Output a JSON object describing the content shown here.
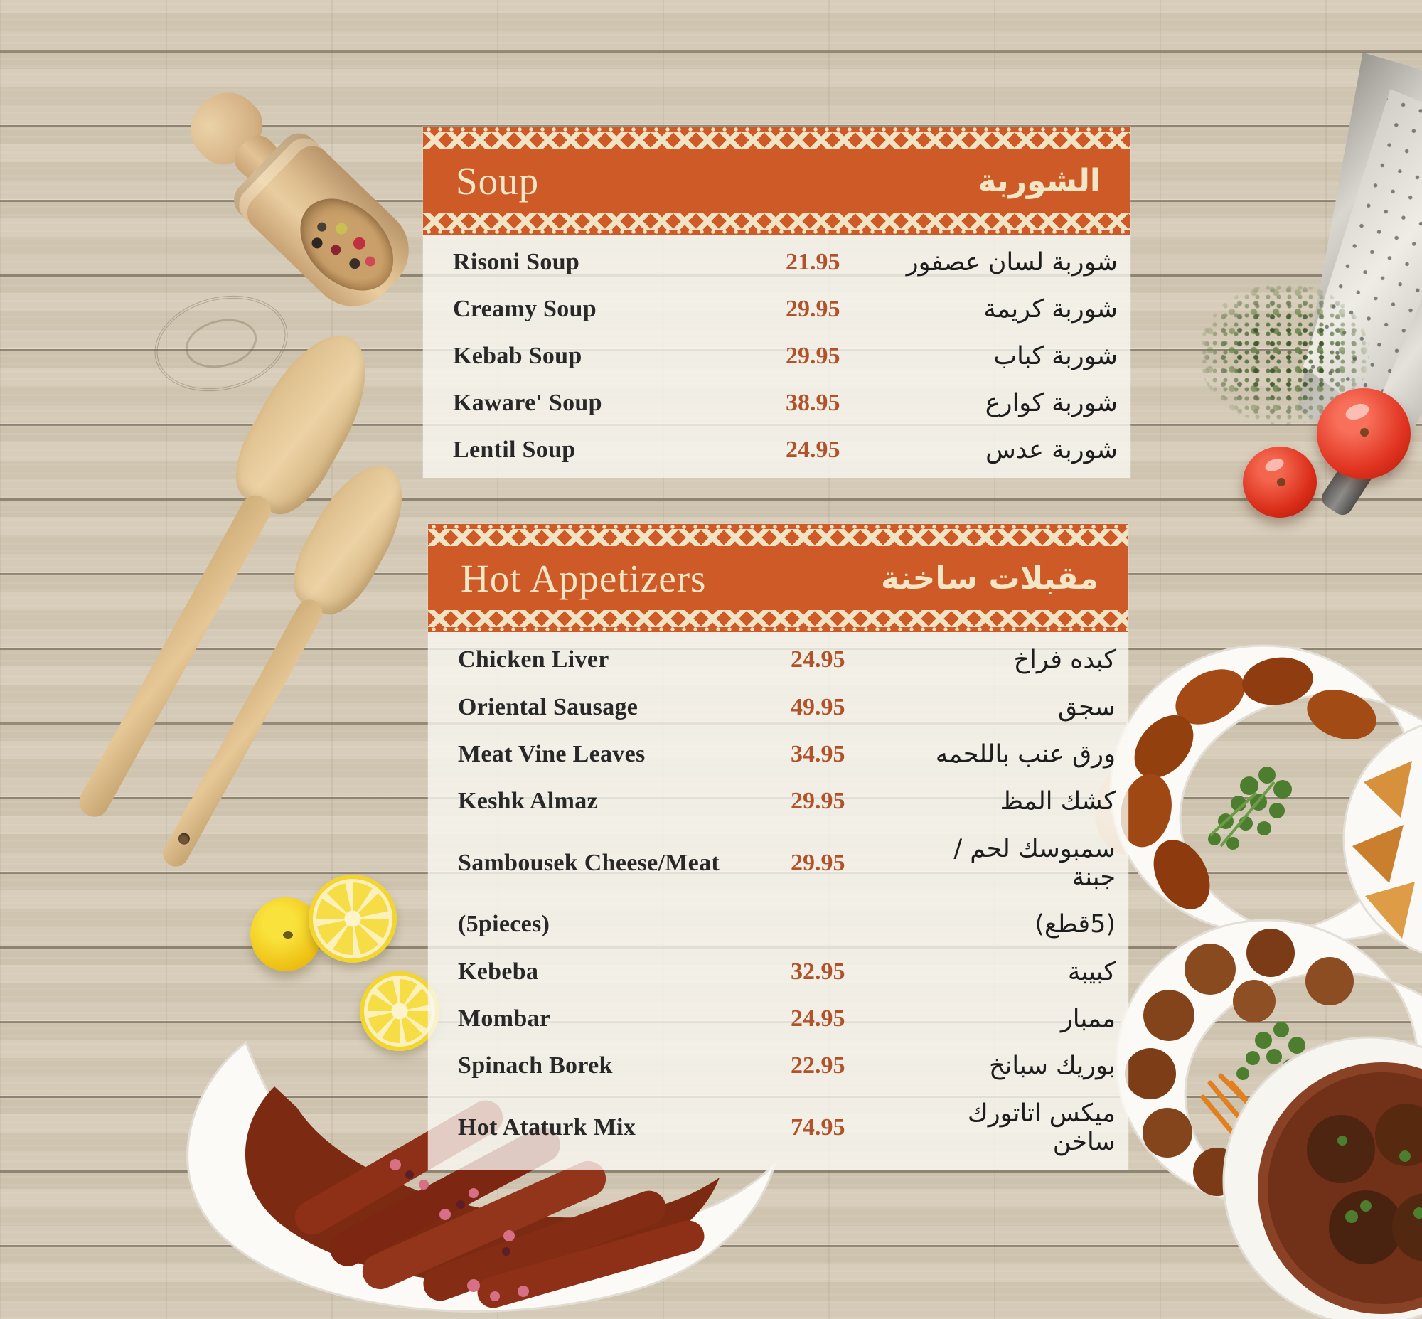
{
  "menu": {
    "sections": [
      {
        "id": "soup",
        "title_en": "Soup",
        "title_ar": "الشوربة",
        "items": [
          {
            "name_en": "Risoni Soup",
            "price": "21.95",
            "name_ar": "شوربة لسان عصفور"
          },
          {
            "name_en": "Creamy Soup",
            "price": "29.95",
            "name_ar": "شوربة كريمة"
          },
          {
            "name_en": "Kebab Soup",
            "price": "29.95",
            "name_ar": "شوربة كباب"
          },
          {
            "name_en": "Kaware' Soup",
            "price": "38.95",
            "name_ar": "شوربة كوارع"
          },
          {
            "name_en": "Lentil Soup",
            "price": "24.95",
            "name_ar": "شوربة عدس"
          }
        ]
      },
      {
        "id": "hot-appetizers",
        "title_en": "Hot Appetizers",
        "title_ar": "مقبلات ساخنة",
        "items": [
          {
            "name_en": "Chicken Liver",
            "price": "24.95",
            "name_ar": "كبده فراخ"
          },
          {
            "name_en": "Oriental Sausage",
            "price": "49.95",
            "name_ar": "سجق"
          },
          {
            "name_en": "Meat Vine Leaves",
            "price": "34.95",
            "name_ar": "ورق عنب باللحمه"
          },
          {
            "name_en": "Keshk Almaz",
            "price": "29.95",
            "name_ar": "كشك المظ"
          },
          {
            "name_en": "Sambousek Cheese/Meat",
            "price": "29.95",
            "name_ar": "سمبوسك لحم /جبنة"
          },
          {
            "name_en": "(5pieces)",
            "price": "",
            "name_ar": "(5قطع)"
          },
          {
            "name_en": "Kebeba",
            "price": "32.95",
            "name_ar": "كبيبة"
          },
          {
            "name_en": "Mombar",
            "price": "24.95",
            "name_ar": "ممبار"
          },
          {
            "name_en": "Spinach Borek",
            "price": "22.95",
            "name_ar": "بوريك سبانخ"
          },
          {
            "name_en": "Hot Ataturk Mix",
            "price": "74.95",
            "name_ar": "ميكس اتاتورك ساخن"
          }
        ]
      }
    ]
  },
  "colors": {
    "banner": "#cd5a27",
    "banner_text": "#f3e6c6",
    "price_text": "#b0522a",
    "item_text": "#282828",
    "panel_bg": "rgba(250,248,243,0.78)"
  },
  "decor": {
    "props": [
      "wooden-spice-scoop",
      "wooden-spatulas",
      "lemon-and-slices",
      "sujuk-sausage-plate",
      "metal-grater",
      "dried-herbs",
      "tomatoes",
      "kibbeh-plate",
      "sambousek-plate",
      "meatball-plate",
      "gravy-meatball-bowl"
    ]
  }
}
